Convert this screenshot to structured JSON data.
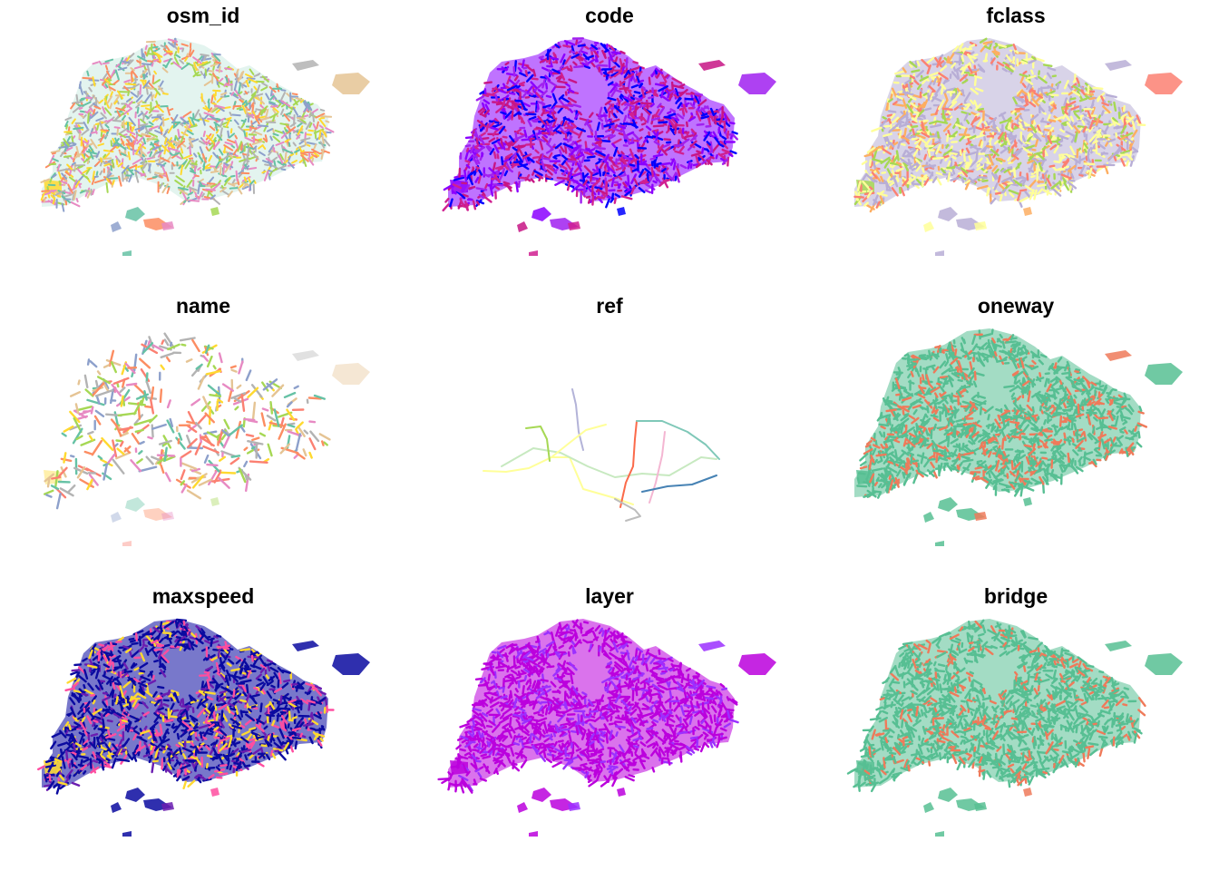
{
  "figure": {
    "panels": [
      {
        "id": "osm_id",
        "title": "osm_id",
        "palette": [
          "#66c2a5",
          "#fc8d62",
          "#8da0cb",
          "#e78ac3",
          "#a6d854",
          "#ffd92f",
          "#e5c494",
          "#b3b3b3"
        ],
        "style": "multi"
      },
      {
        "id": "code",
        "title": "code",
        "palette": [
          "#8b00ff",
          "#a020f0",
          "#c71585",
          "#d02090",
          "#0000ff"
        ],
        "style": "dense"
      },
      {
        "id": "fclass",
        "title": "fclass",
        "palette": [
          "#b8aed6",
          "#b8aed6",
          "#ffff99",
          "#ffff99",
          "#fdae61",
          "#a6d854",
          "#fb8072"
        ],
        "style": "dense"
      },
      {
        "id": "name",
        "title": "name",
        "palette": [
          "#66c2a5",
          "#fc8d62",
          "#8da0cb",
          "#e78ac3",
          "#a6d854",
          "#ffd92f",
          "#e5c494",
          "#b3b3b3",
          "#fb8072"
        ],
        "style": "sparse"
      },
      {
        "id": "ref",
        "title": "ref",
        "palette": [
          "#ffff99",
          "#c7e9c0",
          "#fb6a4a",
          "#7fc8b8",
          "#b3b3d8",
          "#f4b6d2",
          "#a6d854",
          "#4682b4",
          "#bdbdbd"
        ],
        "style": "lines"
      },
      {
        "id": "oneway",
        "title": "oneway",
        "palette": [
          "#57bf93",
          "#57bf93",
          "#57bf93",
          "#ef7a5a"
        ],
        "style": "dense"
      },
      {
        "id": "maxspeed",
        "title": "maxspeed",
        "palette": [
          "#0a0aa0",
          "#0a0aa0",
          "#0a0aa0",
          "#6a1cb0",
          "#ff4da0",
          "#ffd92f"
        ],
        "style": "dense"
      },
      {
        "id": "layer",
        "title": "layer",
        "palette": [
          "#bb00dd",
          "#bb00dd",
          "#bb00dd",
          "#9b30ff"
        ],
        "style": "dense"
      },
      {
        "id": "bridge",
        "title": "bridge",
        "palette": [
          "#57bf93",
          "#57bf93",
          "#57bf93",
          "#57bf93",
          "#ef7a5a"
        ],
        "style": "dense"
      }
    ]
  }
}
